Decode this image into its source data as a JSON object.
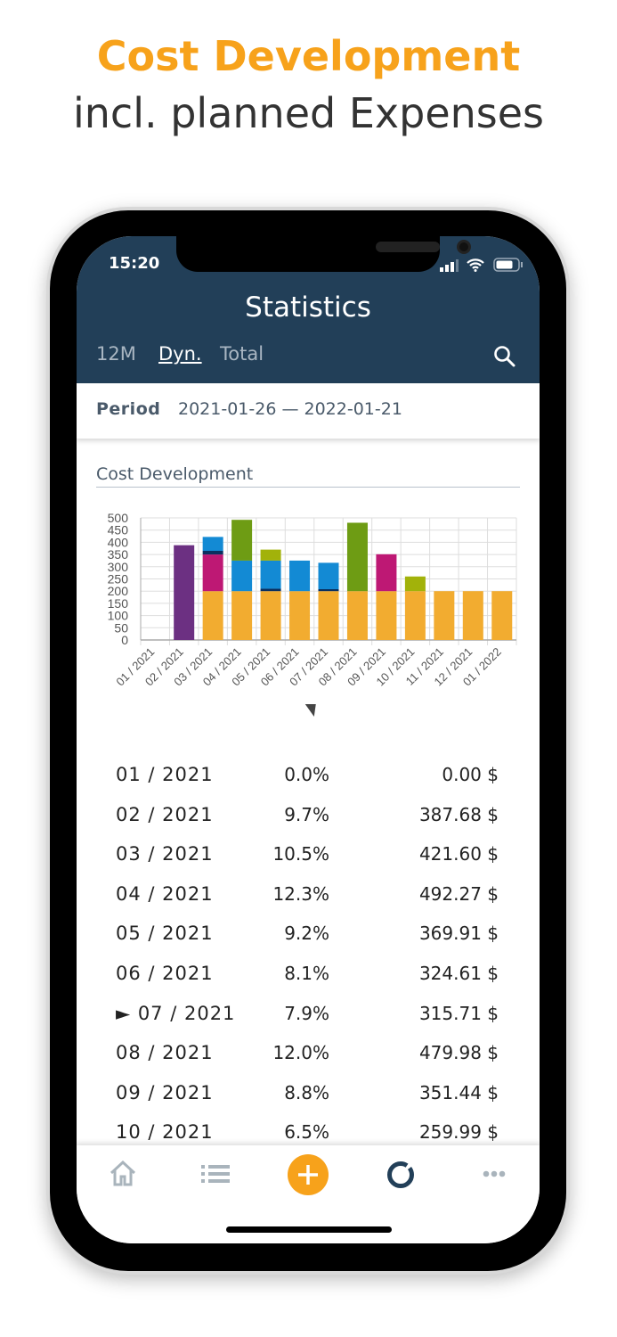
{
  "headline": {
    "title": "Cost Development",
    "subtitle": "incl. planned Expenses"
  },
  "status_bar": {
    "time": "15:20"
  },
  "header": {
    "title": "Statistics",
    "tabs": [
      {
        "label": "12M",
        "active": false
      },
      {
        "label": "Dyn.",
        "active": true
      },
      {
        "label": "Total",
        "active": false
      }
    ],
    "search_icon": "search-icon"
  },
  "period": {
    "label": "Period",
    "value": "2021-01-26 — 2022-01-21"
  },
  "chart_section": {
    "title": "Cost Development"
  },
  "chart_data": {
    "type": "bar",
    "stacked": true,
    "grid": true,
    "ylim": [
      0,
      500
    ],
    "yticks": [
      0,
      50,
      100,
      150,
      200,
      250,
      300,
      350,
      400,
      450,
      500
    ],
    "categories": [
      "01 / 2021",
      "02 / 2021",
      "03 / 2021",
      "04 / 2021",
      "05 / 2021",
      "06 / 2021",
      "07 / 2021",
      "08 / 2021",
      "09 / 2021",
      "10 / 2021",
      "11 / 2021",
      "12 / 2021",
      "01 / 2022"
    ],
    "selected_category": "07 / 2021",
    "colors": {
      "orange": "#F2AC30",
      "purple": "#6C3082",
      "magenta": "#BE1874",
      "navy": "#0A3060",
      "blue": "#138AD4",
      "green": "#6E9C14",
      "lime": "#A2B20A"
    },
    "stacks": [
      [],
      [
        [
          "purple",
          388
        ]
      ],
      [
        [
          "orange",
          200
        ],
        [
          "magenta",
          150
        ],
        [
          "navy",
          15
        ],
        [
          "blue",
          57
        ]
      ],
      [
        [
          "orange",
          200
        ],
        [
          "blue",
          125
        ],
        [
          "green",
          167
        ]
      ],
      [
        [
          "orange",
          200
        ],
        [
          "navy",
          10
        ],
        [
          "blue",
          115
        ],
        [
          "lime",
          45
        ]
      ],
      [
        [
          "orange",
          200
        ],
        [
          "blue",
          125
        ]
      ],
      [
        [
          "orange",
          200
        ],
        [
          "navy",
          8
        ],
        [
          "blue",
          108
        ]
      ],
      [
        [
          "orange",
          200
        ],
        [
          "green",
          280
        ]
      ],
      [
        [
          "orange",
          200
        ],
        [
          "magenta",
          151
        ]
      ],
      [
        [
          "orange",
          200
        ],
        [
          "lime",
          60
        ]
      ],
      [
        [
          "orange",
          200
        ]
      ],
      [
        [
          "orange",
          200
        ]
      ],
      [
        [
          "orange",
          200
        ]
      ]
    ]
  },
  "table": [
    {
      "month": "01 / 2021",
      "percent": "0.0%",
      "amount": "0.00 $"
    },
    {
      "month": "02 / 2021",
      "percent": "9.7%",
      "amount": "387.68 $"
    },
    {
      "month": "03 / 2021",
      "percent": "10.5%",
      "amount": "421.60 $"
    },
    {
      "month": "04 / 2021",
      "percent": "12.3%",
      "amount": "492.27 $"
    },
    {
      "month": "05 / 2021",
      "percent": "9.2%",
      "amount": "369.91 $"
    },
    {
      "month": "06 / 2021",
      "percent": "8.1%",
      "amount": "324.61 $"
    },
    {
      "month": "► 07 / 2021",
      "percent": "7.9%",
      "amount": "315.71 $"
    },
    {
      "month": "08 / 2021",
      "percent": "12.0%",
      "amount": "479.98 $"
    },
    {
      "month": "09 / 2021",
      "percent": "8.8%",
      "amount": "351.44 $"
    },
    {
      "month": "10 / 2021",
      "percent": "6.5%",
      "amount": "259.99 $"
    }
  ],
  "nav": {
    "items": [
      "home-icon",
      "list-icon",
      "add-icon",
      "statistics-icon",
      "more-icon"
    ],
    "accent": "#F7A21B",
    "active_color": "#223F58"
  }
}
